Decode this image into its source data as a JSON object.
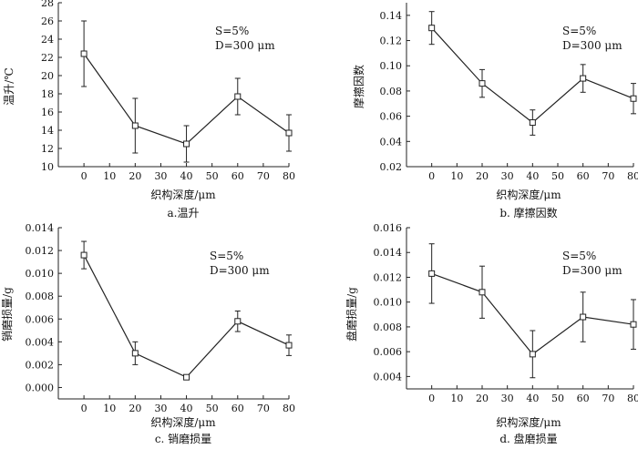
{
  "chart_data": [
    {
      "type": "line",
      "caption": "a.温升",
      "xlabel": "织构深度/μm",
      "ylabel": "温升/℃",
      "annotations": [
        "S=5%",
        "D=300 μm"
      ],
      "x": [
        0,
        20,
        40,
        60,
        80
      ],
      "xlim": [
        -10,
        80
      ],
      "xticks": [
        "0",
        "10",
        "20",
        "30",
        "40",
        "50",
        "60",
        "70",
        "80"
      ],
      "ylim": [
        10,
        28
      ],
      "yticks": [
        "10",
        "12",
        "14",
        "16",
        "18",
        "20",
        "22",
        "24",
        "26",
        "28"
      ],
      "series": [
        {
          "values": [
            22.4,
            14.5,
            12.5,
            17.7,
            13.7
          ],
          "err": [
            3.6,
            3.0,
            2.0,
            2.0,
            2.0
          ]
        }
      ]
    },
    {
      "type": "line",
      "caption": "b. 摩擦因数",
      "xlabel": "织构深度/μm",
      "ylabel": "摩擦因数",
      "annotations": [
        "S=5%",
        "D=300 μm"
      ],
      "x": [
        0,
        20,
        40,
        60,
        80
      ],
      "xlim": [
        -10,
        80
      ],
      "xticks": [
        "0",
        "10",
        "20",
        "30",
        "40",
        "50",
        "60",
        "70",
        "80"
      ],
      "ylim": [
        0.02,
        0.15
      ],
      "yticks": [
        "0.02",
        "0.04",
        "0.06",
        "0.08",
        "0.10",
        "0.12",
        "0.14"
      ],
      "series": [
        {
          "values": [
            0.13,
            0.086,
            0.055,
            0.09,
            0.074
          ],
          "err": [
            0.013,
            0.011,
            0.01,
            0.011,
            0.012
          ]
        }
      ]
    },
    {
      "type": "line",
      "caption": "c. 销磨损量",
      "xlabel": "织构深度/μm",
      "ylabel": "销磨损量/g",
      "annotations": [
        "S=5%",
        "D=300 μm"
      ],
      "x": [
        0,
        20,
        40,
        60,
        80
      ],
      "xlim": [
        -10,
        80
      ],
      "xticks": [
        "0",
        "10",
        "20",
        "30",
        "40",
        "50",
        "60",
        "70",
        "80"
      ],
      "ylim": [
        -0.001,
        0.014
      ],
      "yticks": [
        "0.000",
        "0.002",
        "0.004",
        "0.006",
        "0.008",
        "0.010",
        "0.012",
        "0.014"
      ],
      "series": [
        {
          "values": [
            0.0116,
            0.003,
            0.0009,
            0.0058,
            0.0037
          ],
          "err": [
            0.0012,
            0.001,
            0.0,
            0.0009,
            0.0009
          ]
        }
      ]
    },
    {
      "type": "line",
      "caption": "d. 盘磨损量",
      "xlabel": "织构深度/μm",
      "ylabel": "盘磨损量/g",
      "annotations": [
        "S=5%",
        "D=300 μm"
      ],
      "x": [
        0,
        20,
        40,
        60,
        80
      ],
      "xlim": [
        -10,
        80
      ],
      "xticks": [
        "0",
        "10",
        "20",
        "30",
        "40",
        "50",
        "60",
        "70",
        "80"
      ],
      "ylim": [
        0.003,
        0.016
      ],
      "yticks": [
        "0.004",
        "0.006",
        "0.008",
        "0.010",
        "0.012",
        "0.014",
        "0.016"
      ],
      "series": [
        {
          "values": [
            0.0123,
            0.0108,
            0.0058,
            0.0088,
            0.0082
          ],
          "err": [
            0.0024,
            0.0021,
            0.0019,
            0.002,
            0.002
          ]
        }
      ]
    }
  ]
}
